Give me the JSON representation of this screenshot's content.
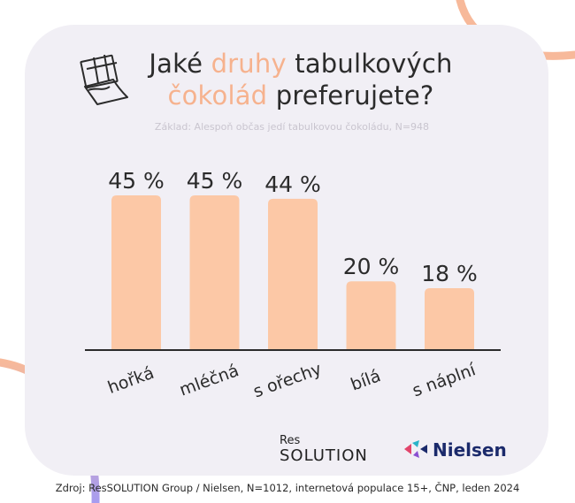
{
  "title": {
    "line1_prefix": "Jaké ",
    "line1_accent": "druhy",
    "line1_suffix": " tabulkových",
    "line2_accent": "čokolád",
    "line2_suffix": " preferujete?"
  },
  "subtitle": "Základ: Alespoň občas jedí tabulkovou čokoládu, N=948",
  "chart_data": {
    "type": "bar",
    "categories": [
      "hořká",
      "mléčná",
      "s ořechy",
      "bílá",
      "s náplní"
    ],
    "values": [
      45,
      45,
      44,
      20,
      18
    ],
    "value_labels": [
      "45 %",
      "45 %",
      "44 %",
      "20 %",
      "18 %"
    ],
    "ylim": [
      0,
      50
    ],
    "grid": false,
    "bar_color": "#fcc8a6"
  },
  "logos": {
    "ressolution_top": "Res",
    "ressolution_bottom": "SOLUTION",
    "nielsen": "Nielsen"
  },
  "source": "Zdroj: ResSOLUTION Group / Nielsen, N=1012, internetová populace 15+, ČNP, leden 2024",
  "colors": {
    "accent": "#f6b28e",
    "card_background": "#f1eff5",
    "bar": "#fcc8a6"
  },
  "icons": [
    "chocolate-bar-icon",
    "nielsen-logo-icon"
  ]
}
